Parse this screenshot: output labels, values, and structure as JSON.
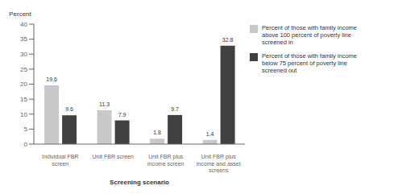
{
  "chart_data": {
    "type": "bar",
    "categories": [
      "Individual FBR\nscreen",
      "Unit FBR screen",
      "Unit FBR plus\nincome screen",
      "Unit FBR plus\nincome and asset\nscreens"
    ],
    "series": [
      {
        "name": "Percent of those with family income\nabove 100 percent of poverty line\nscreened in",
        "color": "#c8c8c8",
        "values": [
          19.6,
          11.3,
          1.8,
          1.4
        ]
      },
      {
        "name": "Percent of those with family income\nbelow 75 percent of poverty line\nscreened out",
        "color": "#404040",
        "values": [
          9.6,
          7.9,
          9.7,
          32.8
        ]
      }
    ],
    "ylabel": "Percent",
    "xlabel": "Screening scenario",
    "ylim": [
      0,
      40
    ],
    "yticks": [
      0,
      5,
      10,
      15,
      20,
      25,
      30,
      35,
      40
    ],
    "grid": false,
    "legend": "right",
    "data_labels": true
  }
}
